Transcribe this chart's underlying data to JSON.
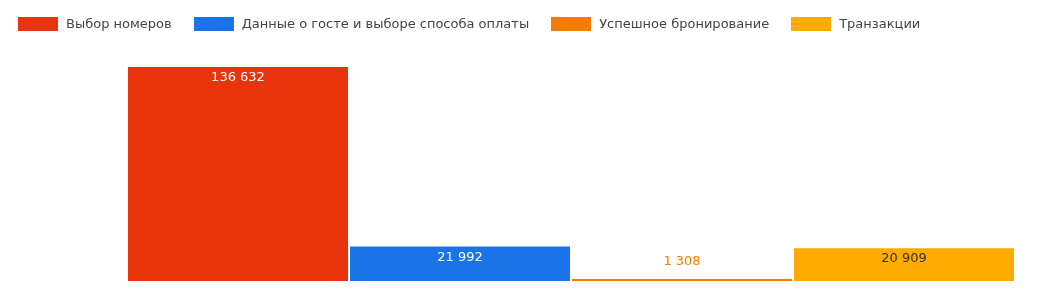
{
  "chart_data": {
    "type": "bar",
    "categories": [
      null
    ],
    "legend": "top left",
    "series": [
      {
        "name": "Выбор номеров",
        "color": "#e8340c",
        "values": [
          136632
        ],
        "value_labels": [
          "136 632"
        ]
      },
      {
        "name": "Данные о госте и выборе способа оплаты",
        "color": "#1a73e8",
        "values": [
          21992
        ],
        "value_labels": [
          "21 992"
        ]
      },
      {
        "name": "Успешное бронирование",
        "color": "#f57c00",
        "values": [
          1308
        ],
        "value_labels": [
          "1 308"
        ]
      },
      {
        "name": "Транзакции",
        "color": "#ffab00",
        "values": [
          20909
        ],
        "value_labels": [
          "20 909"
        ]
      }
    ]
  }
}
